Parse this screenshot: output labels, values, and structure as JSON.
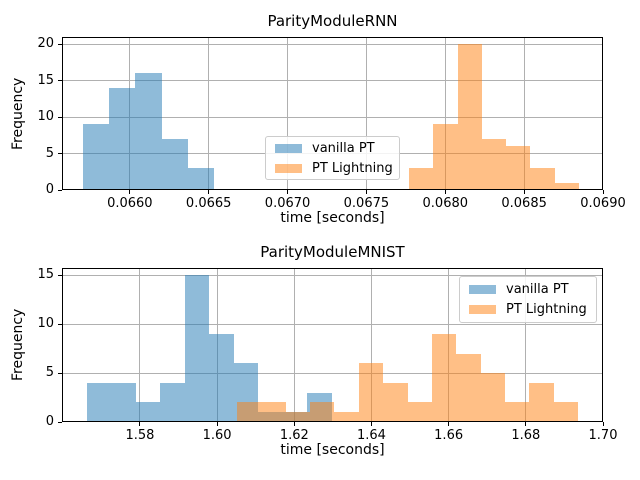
{
  "figure": {
    "background": "#ffffff"
  },
  "colors": {
    "vanilla_pt": "#1f77b4",
    "pt_lightning": "#ff7f0e",
    "bar_alpha": 0.5,
    "grid": "#b0b0b0",
    "spine": "#000000",
    "text": "#000000",
    "legend_border": "#cccccc"
  },
  "legend": {
    "items": [
      {
        "label": "vanilla PT",
        "color": "#1f77b4"
      },
      {
        "label": "PT Lightning",
        "color": "#ff7f0e"
      }
    ]
  },
  "chart_data": [
    {
      "type": "histogram",
      "title": "ParityModuleRNN",
      "xlabel": "time [seconds]",
      "ylabel": "Frequency",
      "xlim": [
        0.06557,
        0.069
      ],
      "ylim": [
        0,
        21
      ],
      "grid": true,
      "xticks": [
        {
          "value": 0.066,
          "label": "0.0660"
        },
        {
          "value": 0.0665,
          "label": "0.0665"
        },
        {
          "value": 0.067,
          "label": "0.0670"
        },
        {
          "value": 0.0675,
          "label": "0.0675"
        },
        {
          "value": 0.068,
          "label": "0.0680"
        },
        {
          "value": 0.0685,
          "label": "0.0685"
        },
        {
          "value": 0.069,
          "label": "0.0690"
        }
      ],
      "yticks": [
        {
          "value": 0,
          "label": "0"
        },
        {
          "value": 5,
          "label": "5"
        },
        {
          "value": 10,
          "label": "10"
        },
        {
          "value": 15,
          "label": "15"
        },
        {
          "value": 20,
          "label": "20"
        }
      ],
      "series": [
        {
          "name": "vanilla PT",
          "color": "#1f77b4",
          "bin_start": 0.0657,
          "bin_width": 0.000167,
          "counts": [
            9,
            14,
            16,
            7,
            3
          ]
        },
        {
          "name": "PT Lightning",
          "color": "#ff7f0e",
          "bin_start": 0.06777,
          "bin_width": 0.000154,
          "counts": [
            3,
            9,
            20,
            7,
            6,
            3,
            1
          ]
        }
      ]
    },
    {
      "type": "histogram",
      "title": "ParityModuleMNIST",
      "xlabel": "time [seconds]",
      "ylabel": "Frequency",
      "xlim": [
        1.5598,
        1.7
      ],
      "ylim": [
        0,
        15.75
      ],
      "grid": true,
      "xticks": [
        {
          "value": 1.58,
          "label": "1.58"
        },
        {
          "value": 1.6,
          "label": "1.60"
        },
        {
          "value": 1.62,
          "label": "1.62"
        },
        {
          "value": 1.64,
          "label": "1.64"
        },
        {
          "value": 1.66,
          "label": "1.66"
        },
        {
          "value": 1.68,
          "label": "1.68"
        },
        {
          "value": 1.7,
          "label": "1.70"
        }
      ],
      "yticks": [
        {
          "value": 0,
          "label": "0"
        },
        {
          "value": 5,
          "label": "5"
        },
        {
          "value": 10,
          "label": "10"
        },
        {
          "value": 15,
          "label": "15"
        }
      ],
      "series": [
        {
          "name": "vanilla PT",
          "color": "#1f77b4",
          "bin_start": 1.5663,
          "bin_width": 0.00634,
          "counts": [
            4,
            4,
            2,
            4,
            15,
            9,
            6,
            1,
            1,
            3
          ]
        },
        {
          "name": "PT Lightning",
          "color": "#ff7f0e",
          "bin_start": 1.6051,
          "bin_width": 0.00632,
          "counts": [
            2,
            2,
            1,
            2,
            1,
            6,
            4,
            2,
            9,
            7,
            5,
            2,
            4,
            2
          ]
        }
      ]
    }
  ]
}
